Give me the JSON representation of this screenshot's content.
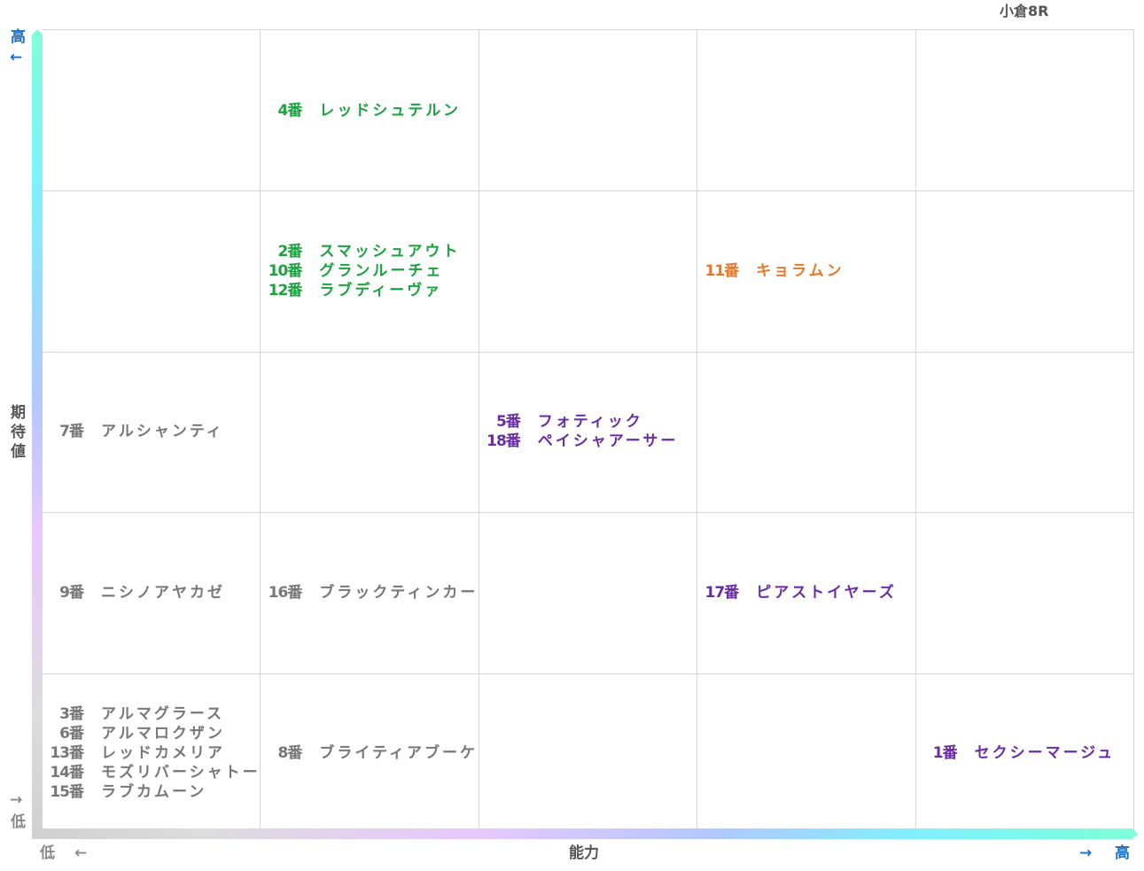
{
  "chart_data": {
    "type": "table",
    "title": "小倉8R",
    "xlabel": "能力",
    "ylabel": "期待値",
    "x_axis": {
      "low_label": "低",
      "low_arrow": "←",
      "high_label": "高",
      "high_arrow": "→",
      "levels": 5
    },
    "y_axis": {
      "low_label": "低",
      "low_arrow": "→",
      "high_label": "高",
      "high_arrow": "←",
      "levels": 5
    },
    "colors": {
      "green": "#1aa33f",
      "orange": "#e8782a",
      "purple": "#6a2ca6",
      "gray": "#777777",
      "axis_high": "#1a6fc4",
      "axis_low": "#888888"
    },
    "cells": [
      {
        "ability": 2,
        "expectation": 5,
        "color": "#1aa33f",
        "entries": [
          {
            "num": "4番",
            "name": "レッドシュテルン"
          }
        ]
      },
      {
        "ability": 2,
        "expectation": 4,
        "color": "#1aa33f",
        "entries": [
          {
            "num": "2番",
            "name": "スマッシュアウト"
          },
          {
            "num": "10番",
            "name": "グランルーチェ"
          },
          {
            "num": "12番",
            "name": "ラブディーヴァ"
          }
        ]
      },
      {
        "ability": 4,
        "expectation": 4,
        "color": "#e8782a",
        "entries": [
          {
            "num": "11番",
            "name": "キョラムン"
          }
        ]
      },
      {
        "ability": 1,
        "expectation": 3,
        "color": "#777777",
        "entries": [
          {
            "num": "7番",
            "name": "アルシャンティ"
          }
        ]
      },
      {
        "ability": 3,
        "expectation": 3,
        "color": "#6a2ca6",
        "entries": [
          {
            "num": "5番",
            "name": "フォティック"
          },
          {
            "num": "18番",
            "name": "ペイシャアーサー"
          }
        ]
      },
      {
        "ability": 1,
        "expectation": 2,
        "color": "#777777",
        "entries": [
          {
            "num": "9番",
            "name": "ニシノアヤカゼ"
          }
        ]
      },
      {
        "ability": 2,
        "expectation": 2,
        "color": "#777777",
        "entries": [
          {
            "num": "16番",
            "name": "ブラックティンカー"
          }
        ]
      },
      {
        "ability": 4,
        "expectation": 2,
        "color": "#6a2ca6",
        "entries": [
          {
            "num": "17番",
            "name": "ピアストイヤーズ"
          }
        ]
      },
      {
        "ability": 1,
        "expectation": 1,
        "color": "#777777",
        "entries": [
          {
            "num": "3番",
            "name": "アルマグラース"
          },
          {
            "num": "6番",
            "name": "アルマロクザン"
          },
          {
            "num": "13番",
            "name": "レッドカメリア"
          },
          {
            "num": "14番",
            "name": "モズリバーシャトー"
          },
          {
            "num": "15番",
            "name": "ラブカムーン"
          }
        ]
      },
      {
        "ability": 2,
        "expectation": 1,
        "color": "#777777",
        "entries": [
          {
            "num": "8番",
            "name": "ブライティアブーケ"
          }
        ]
      },
      {
        "ability": 5,
        "expectation": 1,
        "color": "#6a2ca6",
        "entries": [
          {
            "num": "1番",
            "name": "セクシーマージュ"
          }
        ]
      }
    ]
  }
}
